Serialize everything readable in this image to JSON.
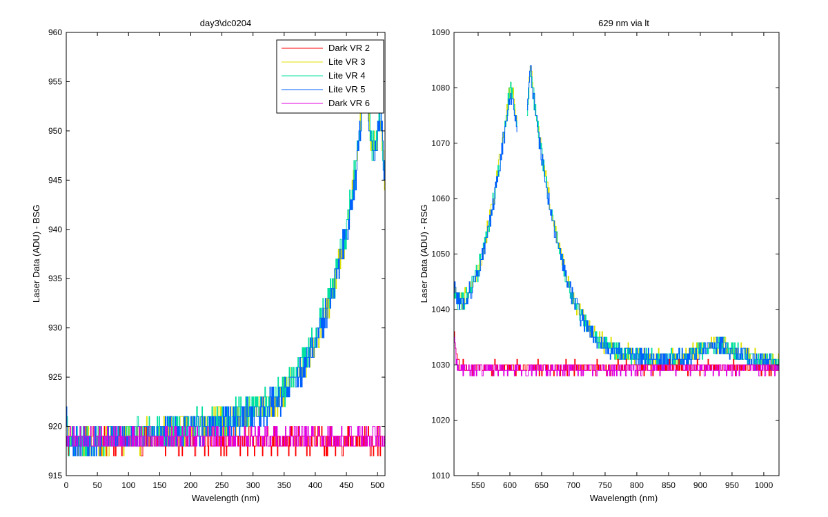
{
  "figure": {
    "background": "#ffffff"
  },
  "chart_data": [
    {
      "type": "line",
      "title": "day3\\dc0204",
      "xlabel": "Wavelength (nm)",
      "ylabel": "Laser Data (ADU) - BSG",
      "xlim": [
        0,
        512
      ],
      "ylim": [
        915,
        960
      ],
      "xticks": [
        0,
        50,
        100,
        150,
        200,
        250,
        300,
        350,
        400,
        450,
        500
      ],
      "yticks": [
        915,
        920,
        925,
        930,
        935,
        940,
        945,
        950,
        955,
        960
      ],
      "legend": {
        "location": "top-right"
      },
      "series": [
        {
          "name": "Dark VR 2",
          "color": "#ff0000",
          "shape": "flat",
          "x": [
            0,
            512
          ],
          "y": [
            918.5,
            918.5
          ],
          "noise": 1.2,
          "seed": 11
        },
        {
          "name": "Lite VR 3",
          "color": "#e0e000",
          "shape": "rise",
          "x": [
            0,
            2,
            8,
            50,
            100,
            150,
            200,
            250,
            300,
            325,
            350,
            375,
            400,
            425,
            450,
            465,
            472,
            478,
            485,
            490,
            495,
            500,
            505,
            510,
            512
          ],
          "y": [
            923,
            919,
            918.5,
            918.7,
            919,
            919.2,
            919.8,
            920.5,
            921.5,
            922.2,
            923.5,
            925.5,
            928.5,
            933,
            940,
            946,
            951,
            954,
            952,
            949,
            948,
            950,
            952,
            946,
            945
          ],
          "noise": 1.6,
          "seed": 23
        },
        {
          "name": "Lite VR 4",
          "color": "#00e0a0",
          "shape": "rise",
          "x": [
            0,
            2,
            8,
            50,
            100,
            150,
            200,
            250,
            300,
            325,
            350,
            375,
            400,
            425,
            450,
            465,
            472,
            478,
            485,
            490,
            495,
            500,
            505,
            510,
            512
          ],
          "y": [
            923,
            919,
            918.5,
            918.7,
            919,
            919.3,
            919.9,
            920.7,
            921.7,
            922.4,
            923.7,
            925.8,
            928.8,
            933.4,
            940.3,
            946.4,
            951.5,
            954.3,
            952,
            949,
            948.2,
            950.3,
            952.2,
            946.2,
            945
          ],
          "noise": 1.6,
          "seed": 37
        },
        {
          "name": "Lite VR 5",
          "color": "#0060ff",
          "shape": "rise",
          "x": [
            0,
            2,
            8,
            50,
            100,
            150,
            200,
            250,
            300,
            325,
            350,
            375,
            400,
            425,
            450,
            465,
            472,
            478,
            485,
            490,
            495,
            500,
            505,
            510,
            512
          ],
          "y": [
            923,
            919,
            918.5,
            918.7,
            919,
            919.1,
            919.6,
            920.3,
            921.3,
            922,
            923.3,
            925.3,
            928.3,
            932.8,
            939.8,
            945.8,
            950.8,
            953.8,
            952,
            949,
            947.8,
            949.8,
            952,
            945.8,
            945
          ],
          "noise": 1.6,
          "seed": 53
        },
        {
          "name": "Dark VR 6",
          "color": "#e000e0",
          "shape": "flat",
          "x": [
            0,
            512
          ],
          "y": [
            918.7,
            918.7
          ],
          "noise": 1.2,
          "seed": 71
        }
      ]
    },
    {
      "type": "line",
      "title": "629 nm via lt",
      "xlabel": "Wavelength (nm)",
      "ylabel": "Laser Data (ADU) - RSG",
      "xlim": [
        512,
        1024
      ],
      "ylim": [
        1010,
        1090
      ],
      "xticks": [
        550,
        600,
        650,
        700,
        750,
        800,
        850,
        900,
        950,
        1000
      ],
      "yticks": [
        1010,
        1020,
        1030,
        1040,
        1050,
        1060,
        1070,
        1080,
        1090
      ],
      "series": [
        {
          "name": "Lite VR 3",
          "color": "#e0e000",
          "shape": "peak",
          "gap": [
            611,
            627
          ],
          "x": [
            512,
            520,
            530,
            540,
            550,
            560,
            570,
            580,
            590,
            600,
            605,
            611,
            627,
            632,
            640,
            650,
            660,
            670,
            680,
            690,
            700,
            720,
            740,
            760,
            780,
            800,
            850,
            880,
            900,
            920,
            940,
            960,
            980,
            1000,
            1024
          ],
          "y": [
            1043,
            1041.5,
            1042.5,
            1044.5,
            1047.5,
            1052,
            1057.5,
            1064,
            1071.5,
            1080,
            1078,
            1074,
            1077,
            1084,
            1076,
            1068,
            1061,
            1055,
            1050,
            1045.5,
            1042,
            1037.5,
            1034.5,
            1033,
            1032.3,
            1031.5,
            1031,
            1031.5,
            1033,
            1033.8,
            1033.5,
            1032.2,
            1031.2,
            1030.8,
            1030.5
          ],
          "noise": 1.6,
          "seed": 101
        },
        {
          "name": "Lite VR 4",
          "color": "#00e0a0",
          "shape": "peak",
          "gap": [
            611,
            627
          ],
          "x": [
            512,
            520,
            530,
            540,
            550,
            560,
            570,
            580,
            590,
            600,
            605,
            611,
            627,
            632,
            640,
            650,
            660,
            670,
            680,
            690,
            700,
            720,
            740,
            760,
            780,
            800,
            850,
            880,
            900,
            920,
            940,
            960,
            980,
            1000,
            1024
          ],
          "y": [
            1043,
            1041.3,
            1042.2,
            1044.2,
            1047.2,
            1051.7,
            1057.2,
            1063.7,
            1071.2,
            1079.5,
            1077.6,
            1073.6,
            1076.6,
            1083.5,
            1075.6,
            1067.6,
            1060.6,
            1054.6,
            1049.6,
            1045.2,
            1041.7,
            1037.2,
            1034.2,
            1032.8,
            1032.1,
            1031.3,
            1030.9,
            1031.3,
            1032.8,
            1033.6,
            1033.3,
            1032,
            1031,
            1030.6,
            1030.3
          ],
          "noise": 1.6,
          "seed": 113
        },
        {
          "name": "Lite VR 5",
          "color": "#0060ff",
          "shape": "peak",
          "gap": [
            611,
            627
          ],
          "x": [
            512,
            520,
            530,
            540,
            550,
            560,
            570,
            580,
            590,
            600,
            605,
            611,
            627,
            632,
            640,
            650,
            660,
            670,
            680,
            690,
            700,
            720,
            740,
            760,
            780,
            800,
            850,
            880,
            900,
            920,
            940,
            960,
            980,
            1000,
            1024
          ],
          "y": [
            1044,
            1041.2,
            1042,
            1044,
            1047,
            1051.5,
            1057,
            1063.5,
            1071,
            1079.2,
            1077.4,
            1073.4,
            1076.4,
            1083.2,
            1075.4,
            1067.4,
            1060.4,
            1054.4,
            1049.4,
            1045,
            1041.5,
            1037,
            1034,
            1032.6,
            1032,
            1031.2,
            1030.8,
            1031.2,
            1032.7,
            1033.5,
            1033.2,
            1031.9,
            1030.9,
            1030.5,
            1030.2
          ],
          "noise": 1.6,
          "seed": 127
        },
        {
          "name": "Dark VR 2",
          "color": "#ff0000",
          "shape": "flat",
          "x": [
            512,
            515,
            520,
            530,
            1024
          ],
          "y": [
            1036,
            1031.5,
            1030,
            1029.5,
            1029.5
          ],
          "noise": 1.1,
          "seed": 131
        },
        {
          "name": "Dark VR 6",
          "color": "#e000e0",
          "shape": "flat",
          "x": [
            512,
            515,
            520,
            530,
            1024
          ],
          "y": [
            1035,
            1031,
            1029.8,
            1029.3,
            1029.3
          ],
          "noise": 1.1,
          "seed": 149
        }
      ]
    }
  ]
}
